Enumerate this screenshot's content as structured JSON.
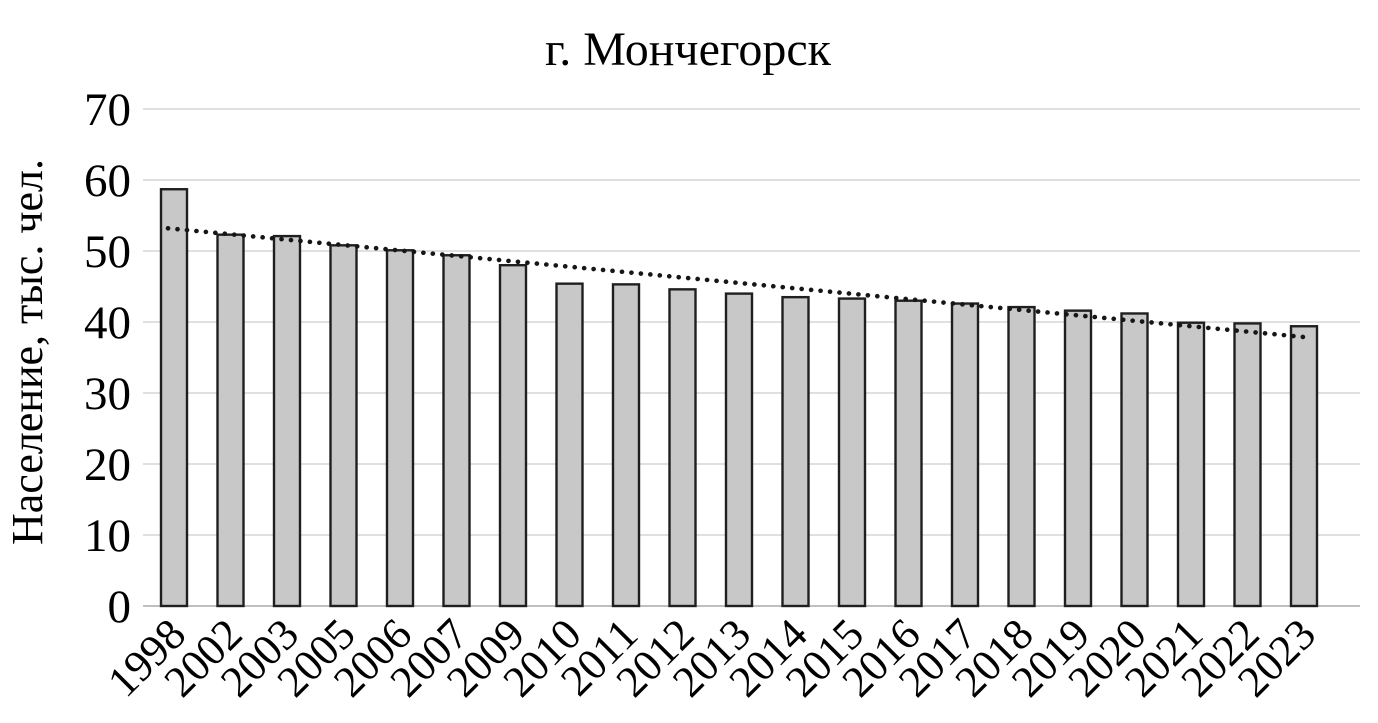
{
  "chart_data": {
    "type": "bar",
    "title": "г. Мончегорск",
    "ylabel": "Население, тыс. чел.",
    "xlabel": "",
    "categories": [
      "1998",
      "2002",
      "2003",
      "2005",
      "2006",
      "2007",
      "2009",
      "2010",
      "2011",
      "2012",
      "2013",
      "2014",
      "2015",
      "2016",
      "2017",
      "2018",
      "2019",
      "2020",
      "2021",
      "2022",
      "2023"
    ],
    "values": [
      58.7,
      52.3,
      52.1,
      50.8,
      50.1,
      49.4,
      48.0,
      45.4,
      45.3,
      44.6,
      44.0,
      43.5,
      43.3,
      43.0,
      42.6,
      42.1,
      41.6,
      41.2,
      39.9,
      39.8,
      39.4
    ],
    "ylim": [
      0,
      70
    ],
    "yticks": [
      0,
      10,
      20,
      30,
      40,
      50,
      60,
      70
    ],
    "grid": true,
    "legend": "none",
    "trendline": {
      "type": "linear",
      "style": "dotted",
      "y_start": 53.2,
      "y_end": 37.8
    },
    "colors": {
      "bar_fill": "#c8c8c8",
      "bar_border": "#1f1f1f",
      "gridline": "#d6d6d6",
      "axis_line": "#bfbfbf",
      "trendline": "#161616",
      "text": "#000000",
      "background": "#ffffff"
    }
  }
}
